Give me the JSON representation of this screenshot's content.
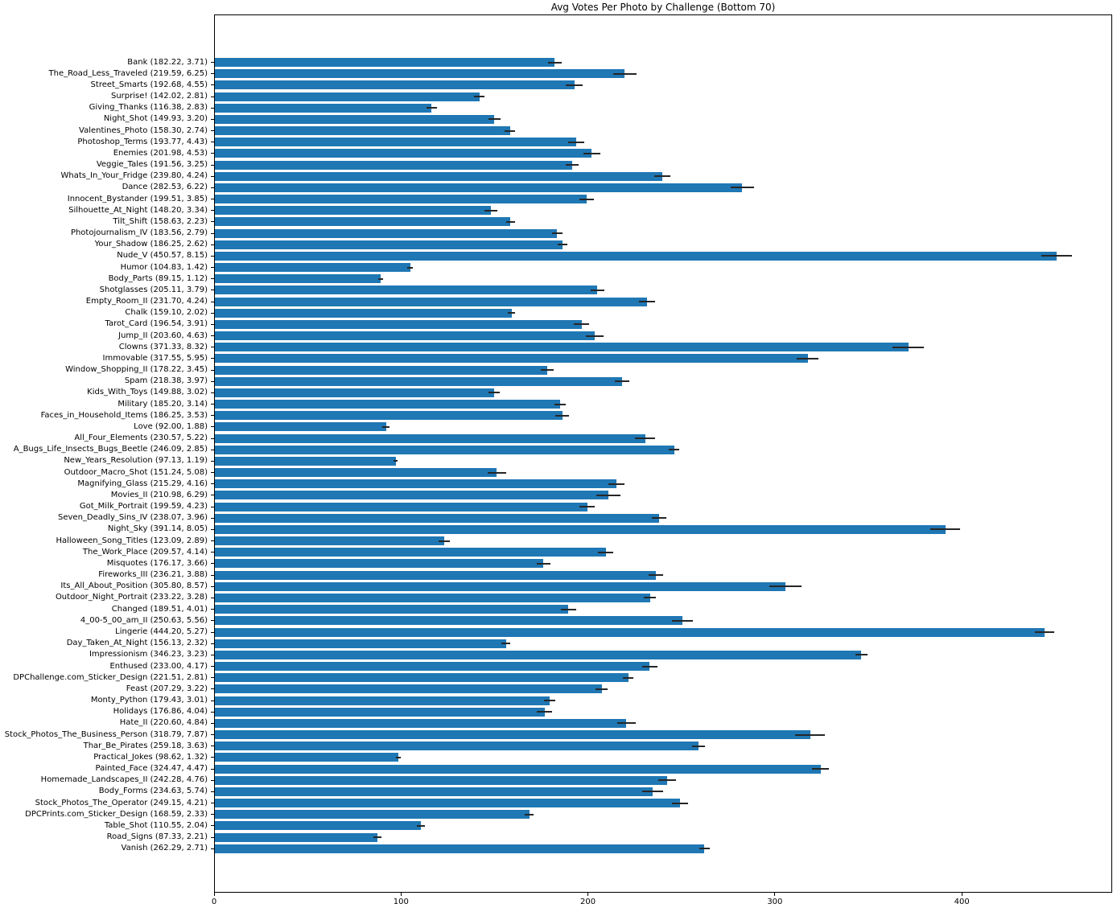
{
  "chart_data": {
    "type": "bar",
    "orientation": "horizontal",
    "title": "Avg Votes Per Photo by Challenge (Bottom 70)",
    "xlabel": "",
    "ylabel": "",
    "xlim": [
      0,
      480
    ],
    "x_ticks": [
      0,
      100,
      200,
      300,
      400
    ],
    "grid": false,
    "legend": null,
    "bar_color": "#1f77b4",
    "error_color": "#262626",
    "category_label_format": "{category} ({value}, {error})",
    "categories": [
      "Bank",
      "The_Road_Less_Traveled",
      "Street_Smarts",
      "Surprise!",
      "Giving_Thanks",
      "Night_Shot",
      "Valentines_Photo",
      "Photoshop_Terms",
      "Enemies",
      "Veggie_Tales",
      "Whats_In_Your_Fridge",
      "Dance",
      "Innocent_Bystander",
      "Silhouette_At_Night",
      "Tilt_Shift",
      "Photojournalism_IV",
      "Your_Shadow",
      "Nude_V",
      "Humor",
      "Body_Parts",
      "Shotglasses",
      "Empty_Room_II",
      "Chalk",
      "Tarot_Card",
      "Jump_II",
      "Clowns",
      "Immovable",
      "Window_Shopping_II",
      "Spam",
      "Kids_With_Toys",
      "Military",
      "Faces_in_Household_Items",
      "Love",
      "All_Four_Elements",
      "A_Bugs_Life_Insects_Bugs_Beetle",
      "New_Years_Resolution",
      "Outdoor_Macro_Shot",
      "Magnifying_Glass",
      "Movies_II",
      "Got_Milk_Portrait",
      "Seven_Deadly_Sins_IV",
      "Night_Sky",
      "Halloween_Song_Titles",
      "The_Work_Place",
      "Misquotes",
      "Fireworks_III",
      "Its_All_About_Position",
      "Outdoor_Night_Portrait",
      "Changed",
      "4_00-5_00_am_II",
      "Lingerie",
      "Day_Taken_At_Night",
      "Impressionism",
      "Enthused",
      "DPChallenge.com_Sticker_Design",
      "Feast",
      "Monty_Python",
      "Holidays",
      "Hate_II",
      "Stock_Photos_The_Business_Person",
      "Thar_Be_Pirates",
      "Practical_Jokes",
      "Painted_Face",
      "Homemade_Landscapes_II",
      "Body_Forms",
      "Stock_Photos_The_Operator",
      "DPCPrints.com_Sticker_Design",
      "Table_Shot",
      "Road_Signs",
      "Vanish"
    ],
    "values": [
      182.22,
      219.59,
      192.68,
      142.02,
      116.38,
      149.93,
      158.3,
      193.77,
      201.98,
      191.56,
      239.8,
      282.53,
      199.51,
      148.2,
      158.63,
      183.56,
      186.25,
      450.57,
      104.83,
      89.15,
      205.11,
      231.7,
      159.1,
      196.54,
      203.6,
      371.33,
      317.55,
      178.22,
      218.38,
      149.88,
      185.2,
      186.25,
      92.0,
      230.57,
      246.09,
      97.13,
      151.24,
      215.29,
      210.98,
      199.59,
      238.07,
      391.14,
      123.09,
      209.57,
      176.17,
      236.21,
      305.8,
      233.22,
      189.51,
      250.63,
      444.2,
      156.13,
      346.23,
      233.0,
      221.51,
      207.29,
      179.43,
      176.86,
      220.6,
      318.79,
      259.18,
      98.62,
      324.47,
      242.28,
      234.63,
      249.15,
      168.59,
      110.55,
      87.33,
      262.29
    ],
    "errors": [
      3.71,
      6.25,
      4.55,
      2.81,
      2.83,
      3.2,
      2.74,
      4.43,
      4.53,
      3.25,
      4.24,
      6.22,
      3.85,
      3.34,
      2.23,
      2.79,
      2.62,
      8.15,
      1.42,
      1.12,
      3.79,
      4.24,
      2.02,
      3.91,
      4.63,
      8.32,
      5.95,
      3.45,
      3.97,
      3.02,
      3.14,
      3.53,
      1.88,
      5.22,
      2.85,
      1.19,
      5.08,
      4.16,
      6.29,
      4.23,
      3.96,
      8.05,
      2.89,
      4.14,
      3.66,
      3.88,
      8.57,
      3.28,
      4.01,
      5.56,
      5.27,
      2.32,
      3.23,
      4.17,
      2.81,
      3.22,
      3.01,
      4.04,
      4.84,
      7.87,
      3.63,
      1.32,
      4.47,
      4.76,
      5.74,
      4.21,
      2.33,
      2.04,
      2.21,
      2.71
    ]
  }
}
